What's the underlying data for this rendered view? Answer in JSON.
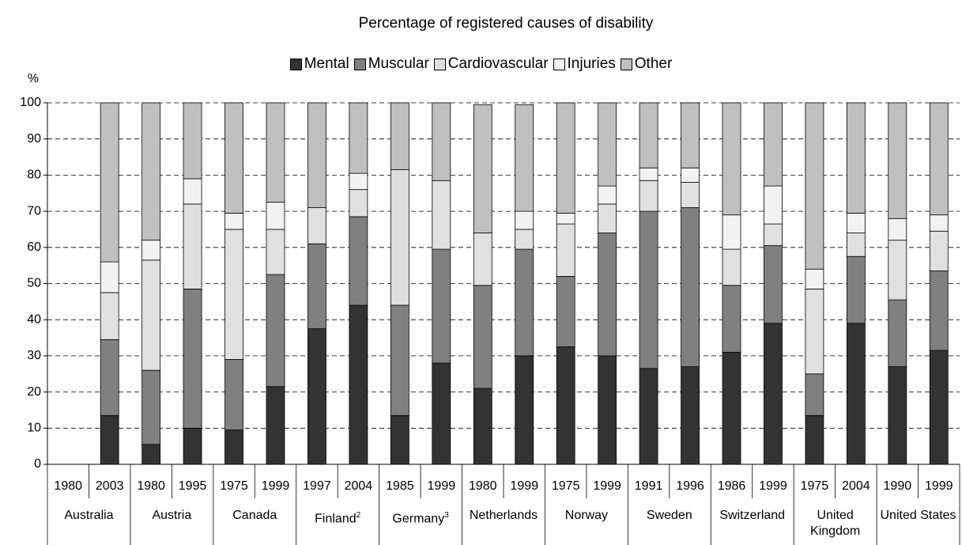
{
  "chart_data": {
    "type": "stacked_bar",
    "title": "Percentage of registered causes of disability",
    "ylabel": "%",
    "categories": [
      "1980",
      "2003",
      "1980",
      "1995",
      "1975",
      "1999",
      "1997",
      "2004",
      "1985",
      "1999",
      "1980",
      "1999",
      "1975",
      "1999",
      "1991",
      "1996",
      "1986",
      "1999",
      "1975",
      "2004",
      "1990",
      "1999"
    ],
    "groups": [
      {
        "name": "Australia"
      },
      {
        "name": "Austria"
      },
      {
        "name": "Canada"
      },
      {
        "name": "Finland",
        "note": "2"
      },
      {
        "name": "Germany",
        "note": "3"
      },
      {
        "name": "Netherlands"
      },
      {
        "name": "Norway"
      },
      {
        "name": "Sweden"
      },
      {
        "name": "Switzerland"
      },
      {
        "name": "United Kingdom"
      },
      {
        "name": "United States"
      }
    ],
    "series": [
      {
        "name": "Mental",
        "color": "#333333",
        "values": [
          null,
          13.5,
          5.5,
          10,
          9.5,
          21.5,
          37.5,
          44,
          13.5,
          28,
          21,
          30,
          32.5,
          30,
          26.5,
          27,
          31,
          39,
          13.5,
          39,
          27,
          31.5
        ]
      },
      {
        "name": "Muscular",
        "color": "#808080",
        "values": [
          null,
          21,
          20.5,
          38.5,
          19.5,
          31,
          23.5,
          24.5,
          30.5,
          31.5,
          28.5,
          29.5,
          19.5,
          34,
          43.5,
          44,
          18.5,
          21.5,
          11.5,
          18.5,
          18.5,
          22
        ]
      },
      {
        "name": "Cardiovascular",
        "color": "#e0e0e0",
        "values": [
          null,
          13,
          30.5,
          23.5,
          36,
          12.5,
          10,
          7.5,
          37.5,
          19,
          14.5,
          5.5,
          14.5,
          8,
          8.5,
          7,
          10,
          6,
          23.5,
          6.5,
          16.5,
          11
        ]
      },
      {
        "name": "Injuries",
        "color": "#f2f2f2",
        "values": [
          null,
          8.5,
          5.5,
          7,
          4.5,
          7.5,
          0,
          4.5,
          0,
          0,
          0,
          5,
          3,
          5,
          3.5,
          4,
          9.5,
          10.5,
          5.5,
          5.5,
          6,
          4.5
        ]
      },
      {
        "name": "Other",
        "color": "#c0c0c0",
        "values": [
          null,
          44,
          38,
          21,
          30.5,
          27.5,
          29,
          19.5,
          18.5,
          21.5,
          35.5,
          29.5,
          30.5,
          23,
          18,
          18,
          31,
          23,
          46,
          30.5,
          32,
          31
        ]
      }
    ],
    "ylim": [
      0,
      100
    ],
    "yticks": [
      0,
      10,
      20,
      30,
      40,
      50,
      60,
      70,
      80,
      90,
      100
    ],
    "grid": true
  }
}
